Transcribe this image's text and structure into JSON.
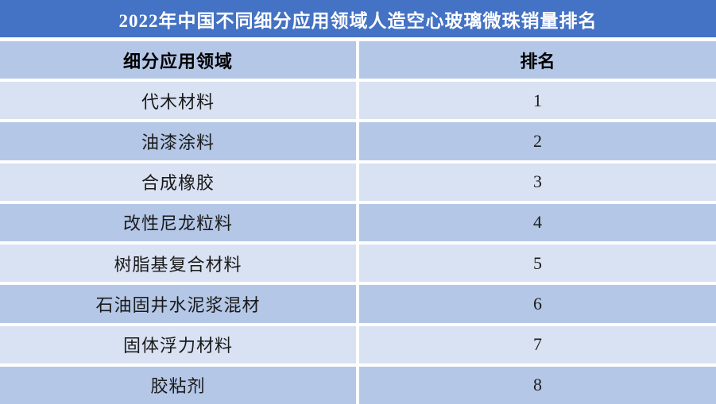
{
  "title": "2022年中国不同细分应用领域人造空心玻璃微珠销量排名",
  "colors": {
    "title_bar": "#4472C4",
    "title_text": "#FFFFFF",
    "header_row": "#B4C7E7",
    "row_light": "#D9E2F3",
    "row_dark": "#B4C7E7",
    "body_text": "#1A1A1A"
  },
  "chart_data": {
    "type": "table",
    "title": "2022年中国不同细分应用领域人造空心玻璃微珠销量排名",
    "columns": [
      "细分应用领域",
      "排名"
    ],
    "rows": [
      [
        "代木材料",
        1
      ],
      [
        "油漆涂料",
        2
      ],
      [
        "合成橡胶",
        3
      ],
      [
        "改性尼龙粒料",
        4
      ],
      [
        "树脂基复合材料",
        5
      ],
      [
        "石油固井水泥浆混材",
        6
      ],
      [
        "固体浮力材料",
        7
      ],
      [
        "胶粘剂",
        8
      ]
    ]
  }
}
